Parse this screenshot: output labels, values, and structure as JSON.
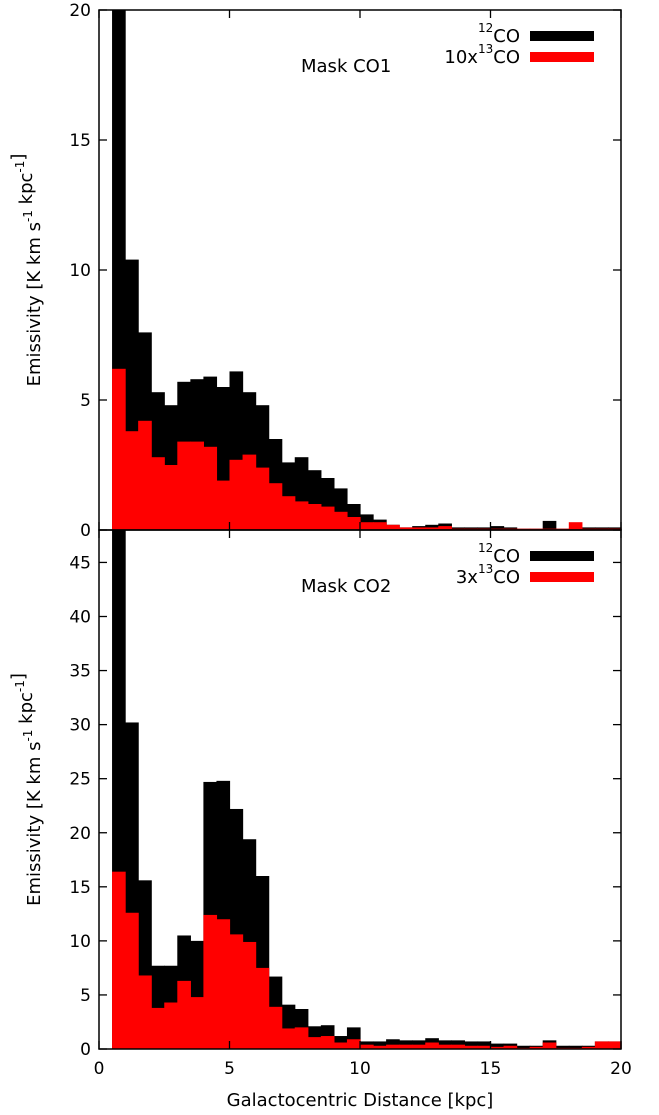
{
  "chart_data": [
    {
      "type": "bar",
      "annotation": "Mask CO1",
      "xlabel": "",
      "ylabel": "Emissivity [K km s^-1 kpc^-1]",
      "xlim": [
        0,
        20
      ],
      "ylim": [
        0,
        20
      ],
      "xticks": [
        0,
        5,
        10,
        15,
        20
      ],
      "yticks": [
        0,
        5,
        10,
        15,
        20
      ],
      "bin_width": 0.5,
      "bin_starts": [
        0.5,
        1.0,
        1.5,
        2.0,
        2.5,
        3.0,
        3.5,
        4.0,
        4.5,
        5.0,
        5.5,
        6.0,
        6.5,
        7.0,
        7.5,
        8.0,
        8.5,
        9.0,
        9.5,
        10.0,
        10.5,
        11.0,
        11.5,
        12.0,
        12.5,
        13.0,
        13.5,
        14.0,
        14.5,
        15.0,
        15.5,
        16.0,
        16.5,
        17.0,
        17.5,
        18.0,
        18.5,
        19.0,
        19.5
      ],
      "legend_position": "top-right",
      "series": [
        {
          "name": "12CO",
          "legend_main": "CO",
          "legend_sup": "12",
          "legend_prefix": "",
          "color": "#000000",
          "values": [
            20.0,
            10.4,
            7.6,
            5.3,
            4.8,
            5.7,
            5.8,
            5.9,
            5.5,
            6.1,
            5.3,
            4.8,
            3.5,
            2.6,
            2.8,
            2.3,
            2.0,
            1.6,
            1.0,
            0.6,
            0.4,
            0.2,
            0.1,
            0.15,
            0.2,
            0.25,
            0.1,
            0.1,
            0.1,
            0.15,
            0.1,
            0.05,
            0.05,
            0.35,
            0.05,
            0.0,
            0.1,
            0.1,
            0.1
          ]
        },
        {
          "name": "10x13CO",
          "legend_main": "CO",
          "legend_sup": "13",
          "legend_prefix": "10x",
          "color": "#ff0000",
          "values": [
            6.2,
            3.8,
            4.2,
            2.8,
            2.5,
            3.4,
            3.4,
            3.2,
            1.9,
            2.7,
            2.9,
            2.4,
            1.8,
            1.3,
            1.1,
            1.0,
            0.9,
            0.7,
            0.5,
            0.3,
            0.3,
            0.2,
            0.1,
            0.1,
            0.1,
            0.15,
            0.05,
            0.05,
            0.05,
            0.05,
            0.05,
            0.05,
            0.05,
            0.05,
            0.05,
            0.3,
            0.05,
            0.05,
            0.05
          ]
        }
      ]
    },
    {
      "type": "bar",
      "annotation": "Mask CO2",
      "xlabel": "Galactocentric Distance [kpc]",
      "ylabel": "Emissivity [K km s^-1 kpc^-1]",
      "xlim": [
        0,
        20
      ],
      "ylim": [
        0,
        48
      ],
      "xticks": [
        0,
        5,
        10,
        15,
        20
      ],
      "yticks": [
        0,
        5,
        10,
        15,
        20,
        25,
        30,
        35,
        40,
        45
      ],
      "bin_width": 0.5,
      "bin_starts": [
        0.5,
        1.0,
        1.5,
        2.0,
        2.5,
        3.0,
        3.5,
        4.0,
        4.5,
        5.0,
        5.5,
        6.0,
        6.5,
        7.0,
        7.5,
        8.0,
        8.5,
        9.0,
        9.5,
        10.0,
        10.5,
        11.0,
        11.5,
        12.0,
        12.5,
        13.0,
        13.5,
        14.0,
        14.5,
        15.0,
        15.5,
        16.0,
        16.5,
        17.0,
        17.5,
        18.0,
        18.5,
        19.0,
        19.5
      ],
      "legend_position": "top-right",
      "series": [
        {
          "name": "12CO",
          "legend_main": "CO",
          "legend_sup": "12",
          "legend_prefix": "",
          "color": "#000000",
          "values": [
            48.0,
            30.2,
            15.6,
            7.7,
            7.7,
            10.5,
            10.0,
            24.7,
            24.8,
            22.2,
            19.4,
            16.0,
            6.7,
            4.1,
            3.7,
            2.1,
            2.2,
            1.2,
            2.0,
            0.7,
            0.7,
            0.9,
            0.8,
            0.8,
            1.0,
            0.8,
            0.8,
            0.7,
            0.7,
            0.5,
            0.5,
            0.3,
            0.3,
            0.8,
            0.3,
            0.3,
            0.3,
            0.7,
            0.7
          ]
        },
        {
          "name": "3x13CO",
          "legend_main": "CO",
          "legend_sup": "13",
          "legend_prefix": "3x",
          "color": "#ff0000",
          "values": [
            16.4,
            12.6,
            6.8,
            3.8,
            4.3,
            6.3,
            4.8,
            12.4,
            12.0,
            10.6,
            9.9,
            7.5,
            3.9,
            1.9,
            2.0,
            1.1,
            1.2,
            0.6,
            0.9,
            0.4,
            0.3,
            0.4,
            0.4,
            0.4,
            0.6,
            0.4,
            0.4,
            0.3,
            0.3,
            0.2,
            0.3,
            0.1,
            0.2,
            0.6,
            0.1,
            0.1,
            0.2,
            0.7,
            0.7
          ]
        }
      ]
    }
  ]
}
